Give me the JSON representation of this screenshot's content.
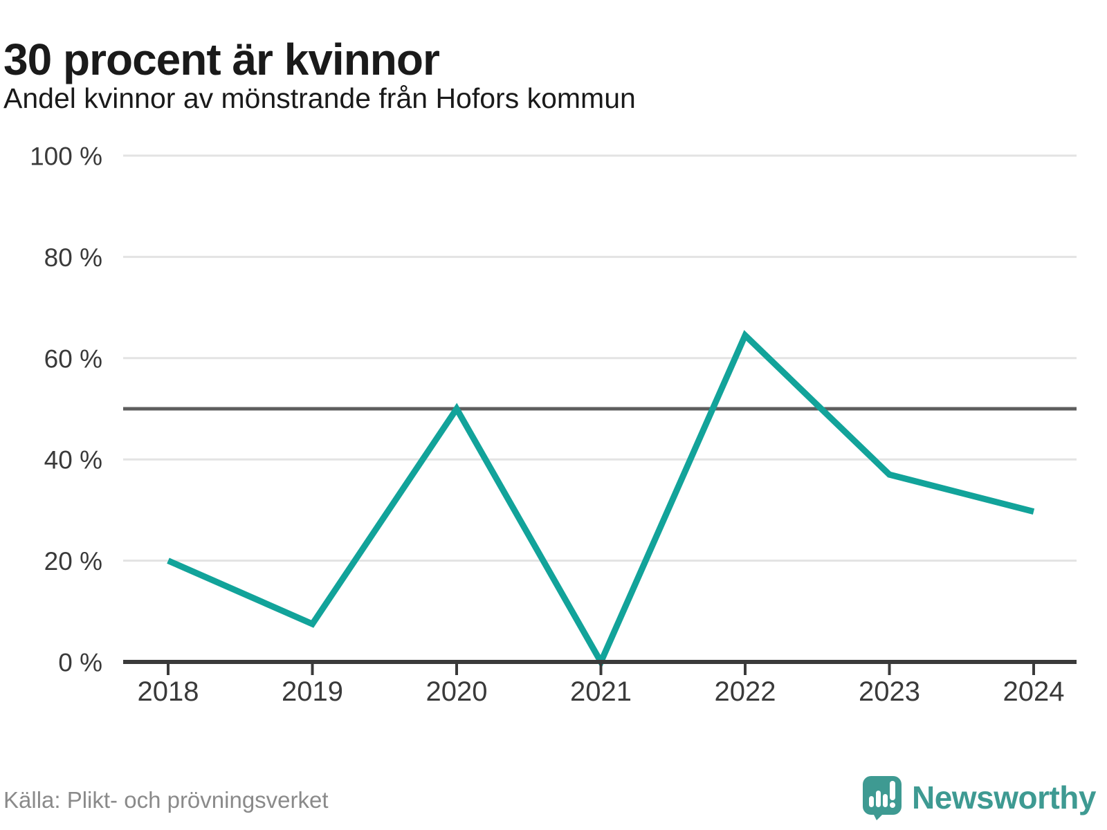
{
  "header": {
    "title": "30 procent är kvinnor",
    "subtitle": "Andel kvinnor av mönstrande från Hofors kommun"
  },
  "chart_data": {
    "type": "line",
    "title": "30 procent är kvinnor",
    "subtitle": "Andel kvinnor av mönstrande från Hofors kommun",
    "x": [
      2018,
      2019,
      2020,
      2021,
      2022,
      2023,
      2024
    ],
    "xtick_labels": [
      "2018",
      "2019",
      "2020",
      "2021",
      "2022",
      "2023",
      "2024"
    ],
    "values": [
      20,
      7.5,
      50,
      0,
      64.5,
      37,
      29.7
    ],
    "unit": "%",
    "ylim": [
      0,
      100
    ],
    "yticks": [
      0,
      20,
      40,
      60,
      80,
      100
    ],
    "ytick_labels": [
      "0 %",
      "20 %",
      "40 %",
      "60 %",
      "80 %",
      "100 %"
    ],
    "reference_line": 50,
    "grid": "horizontal-only",
    "legend": "none",
    "colors": {
      "line": "#12a39a",
      "grid": "#e3e3e3",
      "reference_line": "#5e5e5e",
      "axis": "#3a3a3a",
      "tick_label": "#3a3a3a"
    }
  },
  "footer": {
    "source": "Källa: Plikt- och prövningsverket",
    "logo": {
      "brand": "Newsworthy",
      "icon": "newsworthy-speech-bubble-chart-icon",
      "color": "#3e9a92"
    }
  }
}
